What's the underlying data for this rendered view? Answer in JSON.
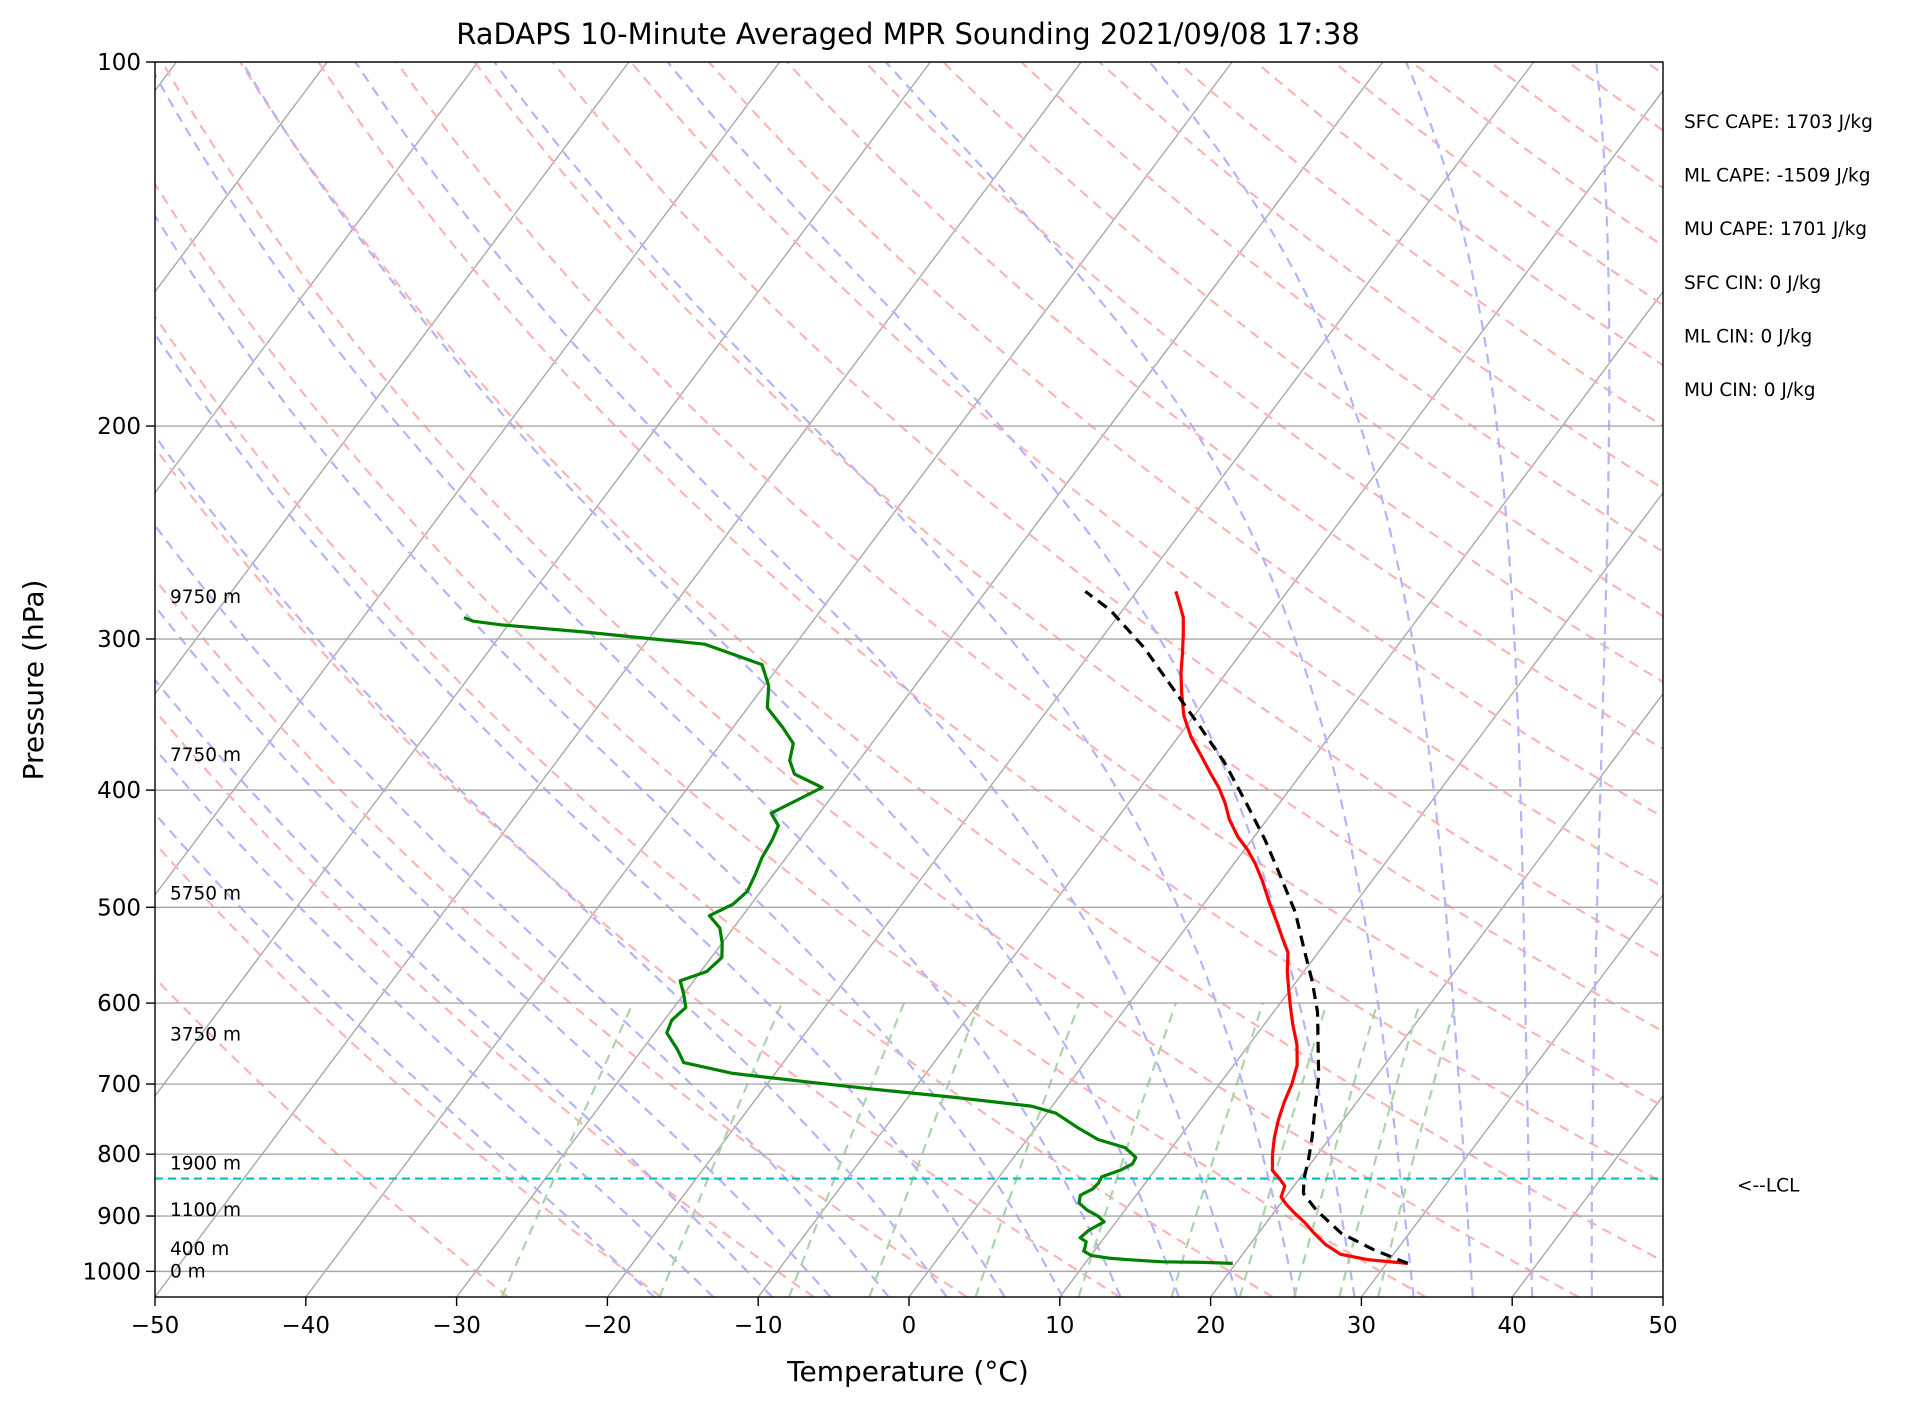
{
  "chart_data": {
    "type": "line",
    "subtype": "skew-t log-p sounding",
    "title": "RaDAPS 10-Minute Averaged MPR Sounding 2021/09/08 17:38",
    "xlabel": "Temperature (°C)",
    "ylabel": "Pressure (hPa)",
    "xlim": [
      -50,
      50
    ],
    "ylim": [
      1050,
      100
    ],
    "yscale": "log",
    "grid": true,
    "x_ticks": [
      -50,
      -40,
      -30,
      -20,
      -10,
      0,
      10,
      20,
      30,
      40,
      50
    ],
    "x_tick_labels": [
      "−50",
      "−40",
      "−30",
      "−20",
      "−10",
      "0",
      "10",
      "20",
      "30",
      "40",
      "50"
    ],
    "y_ticks": [
      100,
      200,
      300,
      400,
      500,
      600,
      700,
      800,
      900,
      1000
    ],
    "y_tick_labels": [
      "100",
      "200",
      "300",
      "400",
      "500",
      "600",
      "700",
      "800",
      "900",
      "1000"
    ],
    "series": [
      {
        "role": "temperature",
        "color": "#ff0000",
        "points": [
          [
            31.4,
            985
          ],
          [
            28.6,
            978
          ],
          [
            26.5,
            968
          ],
          [
            25.0,
            950
          ],
          [
            23.7,
            930
          ],
          [
            22.6,
            912
          ],
          [
            21.4,
            895
          ],
          [
            20.4,
            880
          ],
          [
            19.7,
            868
          ],
          [
            19.4,
            850
          ],
          [
            18.8,
            840
          ],
          [
            17.8,
            825
          ],
          [
            17.0,
            800
          ],
          [
            16.3,
            775
          ],
          [
            15.7,
            750
          ],
          [
            15.2,
            725
          ],
          [
            14.8,
            700
          ],
          [
            14.2,
            675
          ],
          [
            13.2,
            650
          ],
          [
            11.9,
            625
          ],
          [
            10.9,
            605
          ],
          [
            9.9,
            585
          ],
          [
            8.9,
            565
          ],
          [
            8.0,
            545
          ],
          [
            6.9,
            530
          ],
          [
            5.8,
            515
          ],
          [
            4.4,
            497
          ],
          [
            2.7,
            475
          ],
          [
            1.4,
            460
          ],
          [
            0.2,
            448
          ],
          [
            -1.1,
            437
          ],
          [
            -2.5,
            423
          ],
          [
            -3.6,
            410
          ],
          [
            -4.8,
            398
          ],
          [
            -6.1,
            387
          ],
          [
            -7.5,
            375
          ],
          [
            -9.1,
            362
          ],
          [
            -10.7,
            347
          ],
          [
            -12.0,
            332
          ],
          [
            -13.0,
            320
          ],
          [
            -13.9,
            308
          ],
          [
            -14.8,
            297
          ],
          [
            -15.6,
            288
          ],
          [
            -16.6,
            280
          ],
          [
            -17.4,
            274
          ]
        ]
      },
      {
        "role": "dewpoint",
        "color": "#008000",
        "points": [
          [
            19.8,
            985
          ],
          [
            17.8,
            983
          ],
          [
            15.1,
            982
          ],
          [
            13.9,
            980
          ],
          [
            12.7,
            978
          ],
          [
            11.3,
            975
          ],
          [
            10.0,
            970
          ],
          [
            9.3,
            962
          ],
          [
            9.2,
            955
          ],
          [
            9.0,
            945
          ],
          [
            8.4,
            938
          ],
          [
            8.6,
            925
          ],
          [
            9.2,
            910
          ],
          [
            8.5,
            900
          ],
          [
            7.5,
            890
          ],
          [
            6.6,
            878
          ],
          [
            6.3,
            865
          ],
          [
            6.8,
            855
          ],
          [
            6.9,
            845
          ],
          [
            6.8,
            835
          ],
          [
            7.7,
            825
          ],
          [
            8.2,
            815
          ],
          [
            8.1,
            805
          ],
          [
            6.9,
            790
          ],
          [
            4.7,
            778
          ],
          [
            2.7,
            760
          ],
          [
            0.6,
            740
          ],
          [
            -1.4,
            730
          ],
          [
            -6.9,
            718
          ],
          [
            -12.6,
            707
          ],
          [
            -17.5,
            697
          ],
          [
            -22.8,
            686
          ],
          [
            -26.6,
            672
          ],
          [
            -27.7,
            655
          ],
          [
            -29.2,
            635
          ],
          [
            -29.5,
            620
          ],
          [
            -29.2,
            605
          ],
          [
            -30.0,
            590
          ],
          [
            -30.9,
            575
          ],
          [
            -29.6,
            565
          ],
          [
            -29.3,
            550
          ],
          [
            -30.0,
            535
          ],
          [
            -30.9,
            520
          ],
          [
            -32.2,
            508
          ],
          [
            -31.2,
            497
          ],
          [
            -30.9,
            485
          ],
          [
            -31.2,
            470
          ],
          [
            -31.6,
            455
          ],
          [
            -31.8,
            440
          ],
          [
            -32.1,
            428
          ],
          [
            -33.2,
            418
          ],
          [
            -31.1,
            398
          ],
          [
            -33.6,
            388
          ],
          [
            -34.6,
            378
          ],
          [
            -35.2,
            366
          ],
          [
            -36.7,
            355
          ],
          [
            -38.7,
            342
          ],
          [
            -39.7,
            328
          ],
          [
            -41.2,
            315
          ],
          [
            -46.0,
            303
          ],
          [
            -54.6,
            296
          ],
          [
            -60.5,
            292
          ],
          [
            -62.5,
            290
          ],
          [
            -63.3,
            288
          ]
        ]
      },
      {
        "role": "parcel",
        "color": "#000000",
        "dashed": true,
        "points": [
          [
            31.4,
            985
          ],
          [
            28.5,
            960
          ],
          [
            25.5,
            930
          ],
          [
            22.7,
            890
          ],
          [
            21.0,
            862
          ],
          [
            20.3,
            838
          ],
          [
            19.7,
            810
          ],
          [
            18.8,
            775
          ],
          [
            17.6,
            735
          ],
          [
            16.2,
            690
          ],
          [
            14.6,
            650
          ],
          [
            12.9,
            610
          ],
          [
            11.0,
            575
          ],
          [
            8.8,
            540
          ],
          [
            6.5,
            505
          ],
          [
            3.6,
            470
          ],
          [
            0.9,
            440
          ],
          [
            -2.2,
            410
          ],
          [
            -5.6,
            380
          ],
          [
            -9.0,
            355
          ],
          [
            -12.7,
            330
          ],
          [
            -16.7,
            305
          ],
          [
            -20.8,
            284
          ],
          [
            -23.4,
            274
          ]
        ]
      }
    ],
    "lcl": {
      "pressure": 838,
      "label": "<--LCL",
      "color": "#00bfbf"
    },
    "height_labels": [
      {
        "text": "9750 m",
        "pressure": 277
      },
      {
        "text": "7750 m",
        "pressure": 374
      },
      {
        "text": "5750 m",
        "pressure": 487
      },
      {
        "text": "3750 m",
        "pressure": 637
      },
      {
        "text": "1900 m",
        "pressure": 814
      },
      {
        "text": "1100 m",
        "pressure": 890
      },
      {
        "text": "400 m",
        "pressure": 958
      },
      {
        "text": "0 m",
        "pressure": 1000
      }
    ],
    "annotations": [
      "SFC CAPE: 1703 J/kg",
      "ML CAPE: -1509 J/kg",
      "MU CAPE: 1701 J/kg",
      "SFC CIN: 0 J/kg",
      "ML CIN: 0 J/kg",
      "MU CIN: 0 J/kg"
    ],
    "background_lines": {
      "isotherms_color": "#a9a9a9",
      "dry_adiabats_color": "#ffb3b3",
      "moist_adiabats_color": "#b3b3ff",
      "mixing_ratio_color": "#aad4aa"
    }
  }
}
